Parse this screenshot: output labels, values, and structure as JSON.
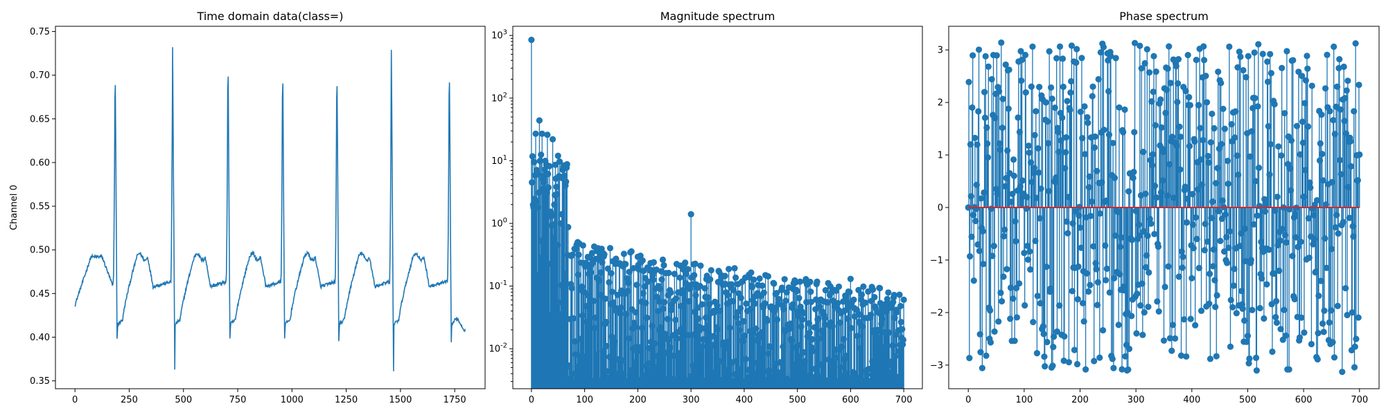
{
  "chart_data": [
    {
      "type": "line",
      "title": "Time domain data(class=)",
      "xlabel": "",
      "ylabel": "Channel 0",
      "xlim": [
        -90,
        1890
      ],
      "ylim": [
        0.341,
        0.756
      ],
      "xticks": [
        0,
        250,
        500,
        750,
        1000,
        1250,
        1500,
        1750
      ],
      "yticks": [
        0.35,
        0.4,
        0.45,
        0.5,
        0.55,
        0.6,
        0.65,
        0.7,
        0.75
      ],
      "grid": false,
      "color": "#1f77b4",
      "n_samples": 1800,
      "beats": [
        {
          "r": 185,
          "peak": 0.725,
          "trough": 0.362
        },
        {
          "r": 450,
          "peak": 0.732,
          "trough": 0.363
        },
        {
          "r": 705,
          "peak": 0.736,
          "trough": 0.361
        },
        {
          "r": 957,
          "peak": 0.727,
          "trough": 0.362
        },
        {
          "r": 1207,
          "peak": 0.724,
          "trough": 0.359
        },
        {
          "r": 1458,
          "peak": 0.729,
          "trough": 0.361
        },
        {
          "r": 1725,
          "peak": 0.729,
          "trough": 0.357
        }
      ],
      "start_value": 0.437,
      "end_value": 0.408
    },
    {
      "type": "stem",
      "title": "Magnitude spectrum",
      "xlabel": "",
      "ylabel": "",
      "yscale": "log",
      "xlim": [
        -35,
        735
      ],
      "ylim": [
        0.0023,
        1400
      ],
      "xticks": [
        0,
        100,
        200,
        300,
        400,
        500,
        600,
        700
      ],
      "yticks": [
        "10^-2",
        "10^-1",
        "10^0",
        "10^1",
        "10^2",
        "10^3"
      ],
      "grid": false,
      "color": "#1f77b4",
      "n_points": 701,
      "dc_value": 850,
      "highlights": [
        {
          "x": 8,
          "y": 27
        },
        {
          "x": 15,
          "y": 44
        },
        {
          "x": 20,
          "y": 27
        },
        {
          "x": 30,
          "y": 26
        },
        {
          "x": 40,
          "y": 22
        },
        {
          "x": 50,
          "y": 12
        },
        {
          "x": 60,
          "y": 8
        },
        {
          "x": 300,
          "y": 1.4
        },
        {
          "x": 600,
          "y": 0.13
        }
      ]
    },
    {
      "type": "stem",
      "title": "Phase spectrum",
      "xlabel": "",
      "ylabel": "",
      "xlim": [
        -35,
        735
      ],
      "ylim": [
        -3.45,
        3.45
      ],
      "xticks": [
        0,
        100,
        200,
        300,
        400,
        500,
        600,
        700
      ],
      "yticks": [
        -3,
        -2,
        -1,
        0,
        1,
        2,
        3
      ],
      "grid": false,
      "color": "#1f77b4",
      "baseline_color": "#d62728",
      "n_points": 701,
      "value_range": [
        -3.1416,
        3.1416
      ]
    }
  ]
}
